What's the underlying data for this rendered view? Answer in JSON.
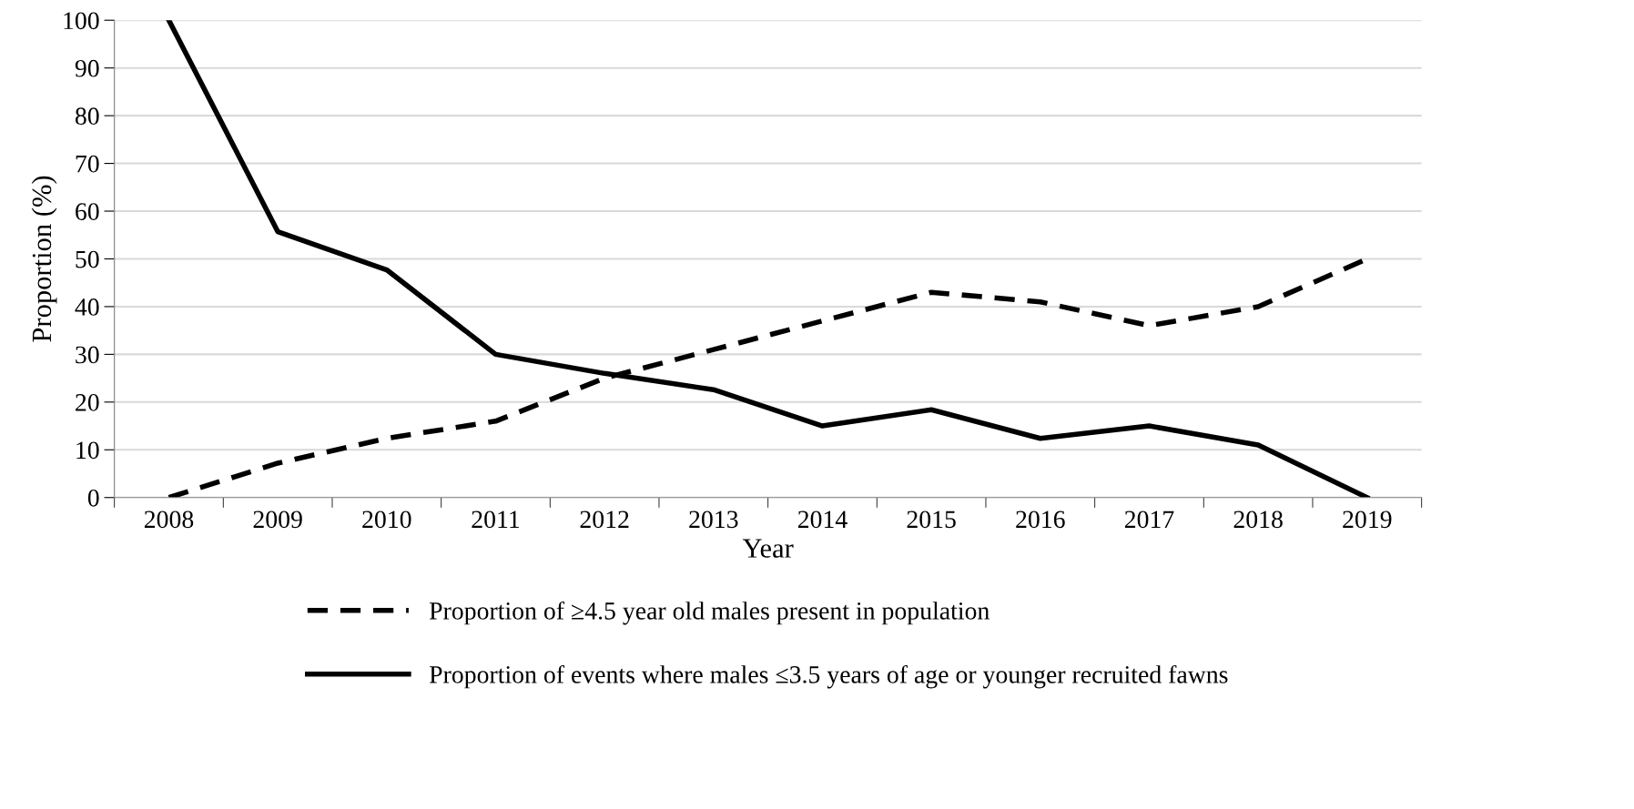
{
  "chart_data": {
    "type": "line",
    "xlabel": "Year",
    "ylabel": "Proportion (%)",
    "categories": [
      "2008",
      "2009",
      "2010",
      "2011",
      "2012",
      "2013",
      "2014",
      "2015",
      "2016",
      "2017",
      "2018",
      "2019"
    ],
    "series": [
      {
        "name": "Proportion of ≥4.5 year old males present in population",
        "color": "#000000",
        "line_style": "dashed",
        "values": [
          0,
          7.2,
          12.4,
          16,
          25,
          31,
          37,
          43,
          41,
          36,
          40,
          50
        ]
      },
      {
        "name": "Proportion of events where males ≤3.5 years of age or younger recruited fawns",
        "color": "#000000",
        "line_style": "solid",
        "values": [
          100,
          55.7,
          47.7,
          30,
          26,
          22.6,
          15,
          18.4,
          12.4,
          15,
          11,
          0
        ]
      }
    ],
    "ylim": [
      0,
      100
    ],
    "yticks": [
      0,
      10,
      20,
      30,
      40,
      50,
      60,
      70,
      80,
      90,
      100
    ],
    "grid": "y",
    "legend": "bottom",
    "marker": "none"
  }
}
